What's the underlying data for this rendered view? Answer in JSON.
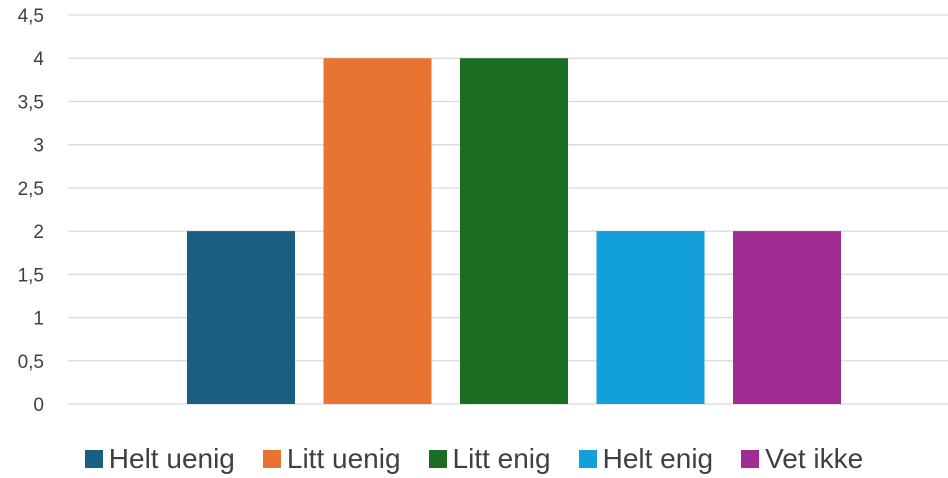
{
  "chart_data": {
    "type": "bar",
    "title": "",
    "xlabel": "",
    "ylabel": "",
    "categories": [
      "Helt uenig",
      "Litt uenig",
      "Litt enig",
      "Helt enig",
      "Vet ikke"
    ],
    "values": [
      2,
      4,
      4,
      2,
      2
    ],
    "colors": [
      "#1a5e82",
      "#e97432",
      "#1b6d24",
      "#139fd8",
      "#a02b93"
    ],
    "ylim": [
      0,
      4.5
    ],
    "y_ticks": [
      "0",
      "0,5",
      "1",
      "1,5",
      "2",
      "2,5",
      "3",
      "3,5",
      "4",
      "4,5"
    ],
    "grid": true,
    "legend_position": "bottom"
  }
}
